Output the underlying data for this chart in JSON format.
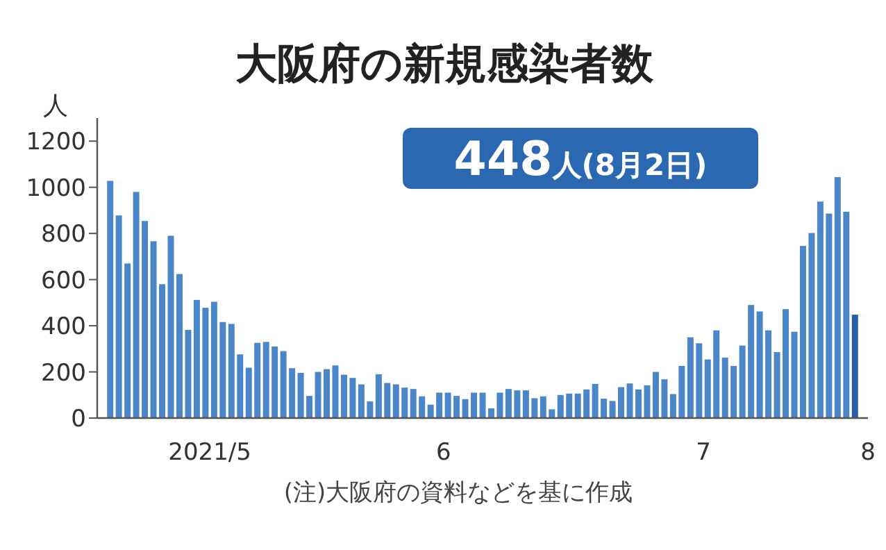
{
  "chart_data": {
    "type": "bar",
    "title": "大阪府の新規感染者数",
    "ylabel": "人",
    "annotations": [
      "448人(8月2日)",
      "(注)大阪府の資料などを基に作成"
    ],
    "x": [
      "2021-05-08",
      "2021-05-09",
      "2021-05-10",
      "2021-05-11",
      "2021-05-12",
      "2021-05-13",
      "2021-05-14",
      "2021-05-15",
      "2021-05-16",
      "2021-05-17",
      "2021-05-18",
      "2021-05-19",
      "2021-05-20",
      "2021-05-21",
      "2021-05-22",
      "2021-05-23",
      "2021-05-24",
      "2021-05-25",
      "2021-05-26",
      "2021-05-27",
      "2021-05-28",
      "2021-05-29",
      "2021-05-30",
      "2021-05-31",
      "2021-06-01",
      "2021-06-02",
      "2021-06-03",
      "2021-06-04",
      "2021-06-05",
      "2021-06-06",
      "2021-06-07",
      "2021-06-08",
      "2021-06-09",
      "2021-06-10",
      "2021-06-11",
      "2021-06-12",
      "2021-06-13",
      "2021-06-14",
      "2021-06-15",
      "2021-06-16",
      "2021-06-17",
      "2021-06-18",
      "2021-06-19",
      "2021-06-20",
      "2021-06-21",
      "2021-06-22",
      "2021-06-23",
      "2021-06-24",
      "2021-06-25",
      "2021-06-26",
      "2021-06-27",
      "2021-06-28",
      "2021-06-29",
      "2021-06-30",
      "2021-07-01",
      "2021-07-02",
      "2021-07-03",
      "2021-07-04",
      "2021-07-05",
      "2021-07-06",
      "2021-07-07",
      "2021-07-08",
      "2021-07-09",
      "2021-07-10",
      "2021-07-11",
      "2021-07-12",
      "2021-07-13",
      "2021-07-14",
      "2021-07-15",
      "2021-07-16",
      "2021-07-17",
      "2021-07-18",
      "2021-07-19",
      "2021-07-20",
      "2021-07-21",
      "2021-07-22",
      "2021-07-23",
      "2021-07-24",
      "2021-07-25",
      "2021-07-26",
      "2021-07-27",
      "2021-07-28",
      "2021-07-29",
      "2021-07-30",
      "2021-07-31",
      "2021-08-01",
      "2021-08-02"
    ],
    "values": [
      1028,
      878,
      670,
      980,
      854,
      766,
      580,
      790,
      624,
      382,
      512,
      478,
      504,
      416,
      408,
      276,
      218,
      326,
      330,
      310,
      290,
      216,
      196,
      96,
      200,
      212,
      228,
      188,
      174,
      146,
      72,
      190,
      152,
      146,
      132,
      126,
      94,
      58,
      110,
      110,
      96,
      82,
      110,
      110,
      42,
      110,
      126,
      120,
      120,
      86,
      94,
      38,
      100,
      106,
      106,
      124,
      148,
      84,
      74,
      134,
      150,
      124,
      142,
      200,
      168,
      104,
      226,
      350,
      324,
      254,
      380,
      262,
      226,
      314,
      490,
      462,
      380,
      286,
      472,
      374,
      746,
      802,
      938,
      886,
      1044,
      894,
      448
    ],
    "colors": [
      "#4a86c8",
      "#4a86c8",
      "#4a86c8",
      "#4a86c8",
      "#4a86c8",
      "#4a86c8",
      "#4a86c8",
      "#4a86c8",
      "#4a86c8",
      "#4a86c8",
      "#4a86c8",
      "#4a86c8",
      "#4a86c8",
      "#4a86c8",
      "#4a86c8",
      "#4a86c8",
      "#4a86c8",
      "#4a86c8",
      "#4a86c8",
      "#4a86c8",
      "#4a86c8",
      "#4a86c8",
      "#4a86c8",
      "#4a86c8",
      "#4a86c8",
      "#4a86c8",
      "#4a86c8",
      "#4a86c8",
      "#4a86c8",
      "#4a86c8",
      "#4a86c8",
      "#4a86c8",
      "#4a86c8",
      "#4a86c8",
      "#4a86c8",
      "#4a86c8",
      "#4a86c8",
      "#4a86c8",
      "#4a86c8",
      "#4a86c8",
      "#4a86c8",
      "#4a86c8",
      "#4a86c8",
      "#4a86c8",
      "#4a86c8",
      "#4a86c8",
      "#4a86c8",
      "#4a86c8",
      "#4a86c8",
      "#4a86c8",
      "#4a86c8",
      "#4a86c8",
      "#4a86c8",
      "#4a86c8",
      "#4a86c8",
      "#4a86c8",
      "#4a86c8",
      "#4a86c8",
      "#4a86c8",
      "#4a86c8",
      "#4a86c8",
      "#4a86c8",
      "#4a86c8",
      "#4a86c8",
      "#4a86c8",
      "#4a86c8",
      "#4a86c8",
      "#4a86c8",
      "#4a86c8",
      "#4a86c8",
      "#4a86c8",
      "#4a86c8",
      "#4a86c8",
      "#4a86c8",
      "#4a86c8",
      "#4a86c8",
      "#4a86c8",
      "#4a86c8",
      "#4a86c8",
      "#4a86c8",
      "#4a86c8",
      "#4a86c8",
      "#4a86c8",
      "#4a86c8",
      "#4a86c8",
      "#4a86c8",
      "#2a5fa5"
    ],
    "xlim": [
      "2021-05-06T12:00",
      "2021-08-03T12:00"
    ],
    "xticks": [
      {
        "value": "2021-05-19T12:00",
        "label": "2021/5"
      },
      {
        "value": "2021-06-15T12:00",
        "label": "6"
      },
      {
        "value": "2021-07-15T12:00",
        "label": "7"
      },
      {
        "value": "2021-08-03T12:00",
        "label": "8"
      }
    ],
    "ylim": [
      0,
      1300
    ],
    "yticks": [
      0,
      200,
      400,
      600,
      800,
      1000,
      1200
    ],
    "grid": false
  }
}
